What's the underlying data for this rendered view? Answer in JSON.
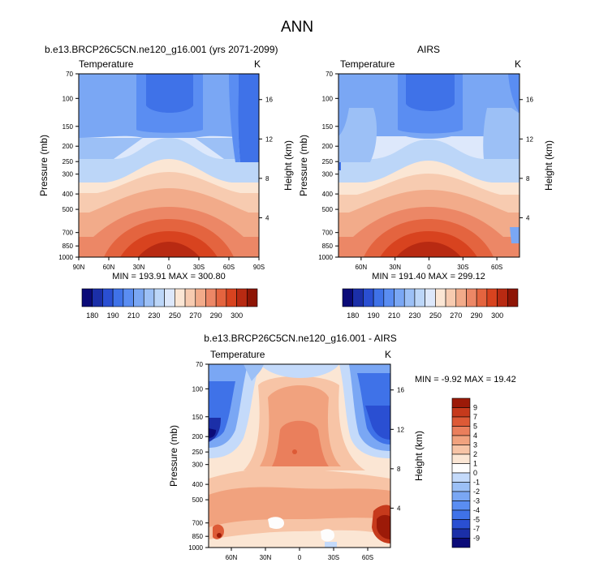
{
  "figure": {
    "title": "ANN"
  },
  "colors": {
    "temp_levels": [
      "#0b0b78",
      "#1b2fa8",
      "#2a4fd2",
      "#3f72e8",
      "#5a8df2",
      "#7aa7f4",
      "#9cc0f6",
      "#bcd6f8",
      "#dde8fb",
      "#fbe6d4",
      "#f7cbb0",
      "#f2ab8a",
      "#ec8766",
      "#e4643f",
      "#d8431f",
      "#b82a12",
      "#8e1505"
    ],
    "diff_levels": [
      "#0b0b78",
      "#1b2fa8",
      "#2a4fd2",
      "#3f72e8",
      "#5a8df2",
      "#7aa7f4",
      "#9cc0f6",
      "#c4dafa",
      "#fdfdfd",
      "#fbe6d4",
      "#f7c4a6",
      "#f1a27e",
      "#ea7f5c",
      "#dd5a36",
      "#c63a1c",
      "#9c1a08"
    ]
  },
  "chart_data": [
    {
      "type": "heatmap",
      "title": "b.e13.BRCP26C5CN.ne120_g16.001 (yrs 2071-2099)",
      "left_label": "Temperature",
      "right_label": "K",
      "ylabel": "Pressure (mb)",
      "y2label": "Height (km)",
      "x_ticks": [
        "90N",
        "60N",
        "30N",
        "0",
        "30S",
        "60S",
        "90S"
      ],
      "y_ticks": [
        "70",
        "100",
        "150",
        "200",
        "250",
        "300",
        "400",
        "500",
        "700",
        "850",
        "1000"
      ],
      "y2_ticks": [
        "16",
        "12",
        "8",
        "4"
      ],
      "stats": "MIN = 193.91   MAX = 300.80",
      "min": 193.91,
      "max": 300.8,
      "colorbar_labels": [
        "180",
        "190",
        "210",
        "230",
        "250",
        "270",
        "290",
        "300"
      ]
    },
    {
      "type": "heatmap",
      "title": "AIRS",
      "left_label": "Temperature",
      "right_label": "K",
      "ylabel": "Pressure (mb)",
      "y2label": "Height (km)",
      "x_ticks": [
        "60N",
        "30N",
        "0",
        "30S",
        "60S"
      ],
      "y_ticks": [
        "70",
        "100",
        "150",
        "200",
        "250",
        "300",
        "400",
        "500",
        "700",
        "850",
        "1000"
      ],
      "y2_ticks": [
        "16",
        "12",
        "8",
        "4"
      ],
      "stats": "MIN = 191.40   MAX = 299.12",
      "min": 191.4,
      "max": 299.12,
      "colorbar_labels": [
        "180",
        "190",
        "210",
        "230",
        "250",
        "270",
        "290",
        "300"
      ]
    },
    {
      "type": "heatmap",
      "title": "b.e13.BRCP26C5CN.ne120_g16.001 - AIRS",
      "left_label": "Temperature",
      "right_label": "K",
      "ylabel": "Pressure (mb)",
      "y2label": "Height (km)",
      "x_ticks": [
        "60N",
        "30N",
        "0",
        "30S",
        "60S"
      ],
      "y_ticks": [
        "70",
        "100",
        "150",
        "200",
        "250",
        "300",
        "400",
        "500",
        "700",
        "850",
        "1000"
      ],
      "y2_ticks": [
        "16",
        "12",
        "8",
        "4"
      ],
      "stats": "MIN = -9.92  MAX = 19.42",
      "min": -9.92,
      "max": 19.42,
      "colorbar_labels": [
        "9",
        "7",
        "5",
        "4",
        "3",
        "2",
        "1",
        "0",
        "-1",
        "-2",
        "-3",
        "-4",
        "-5",
        "-7",
        "-9"
      ]
    }
  ]
}
